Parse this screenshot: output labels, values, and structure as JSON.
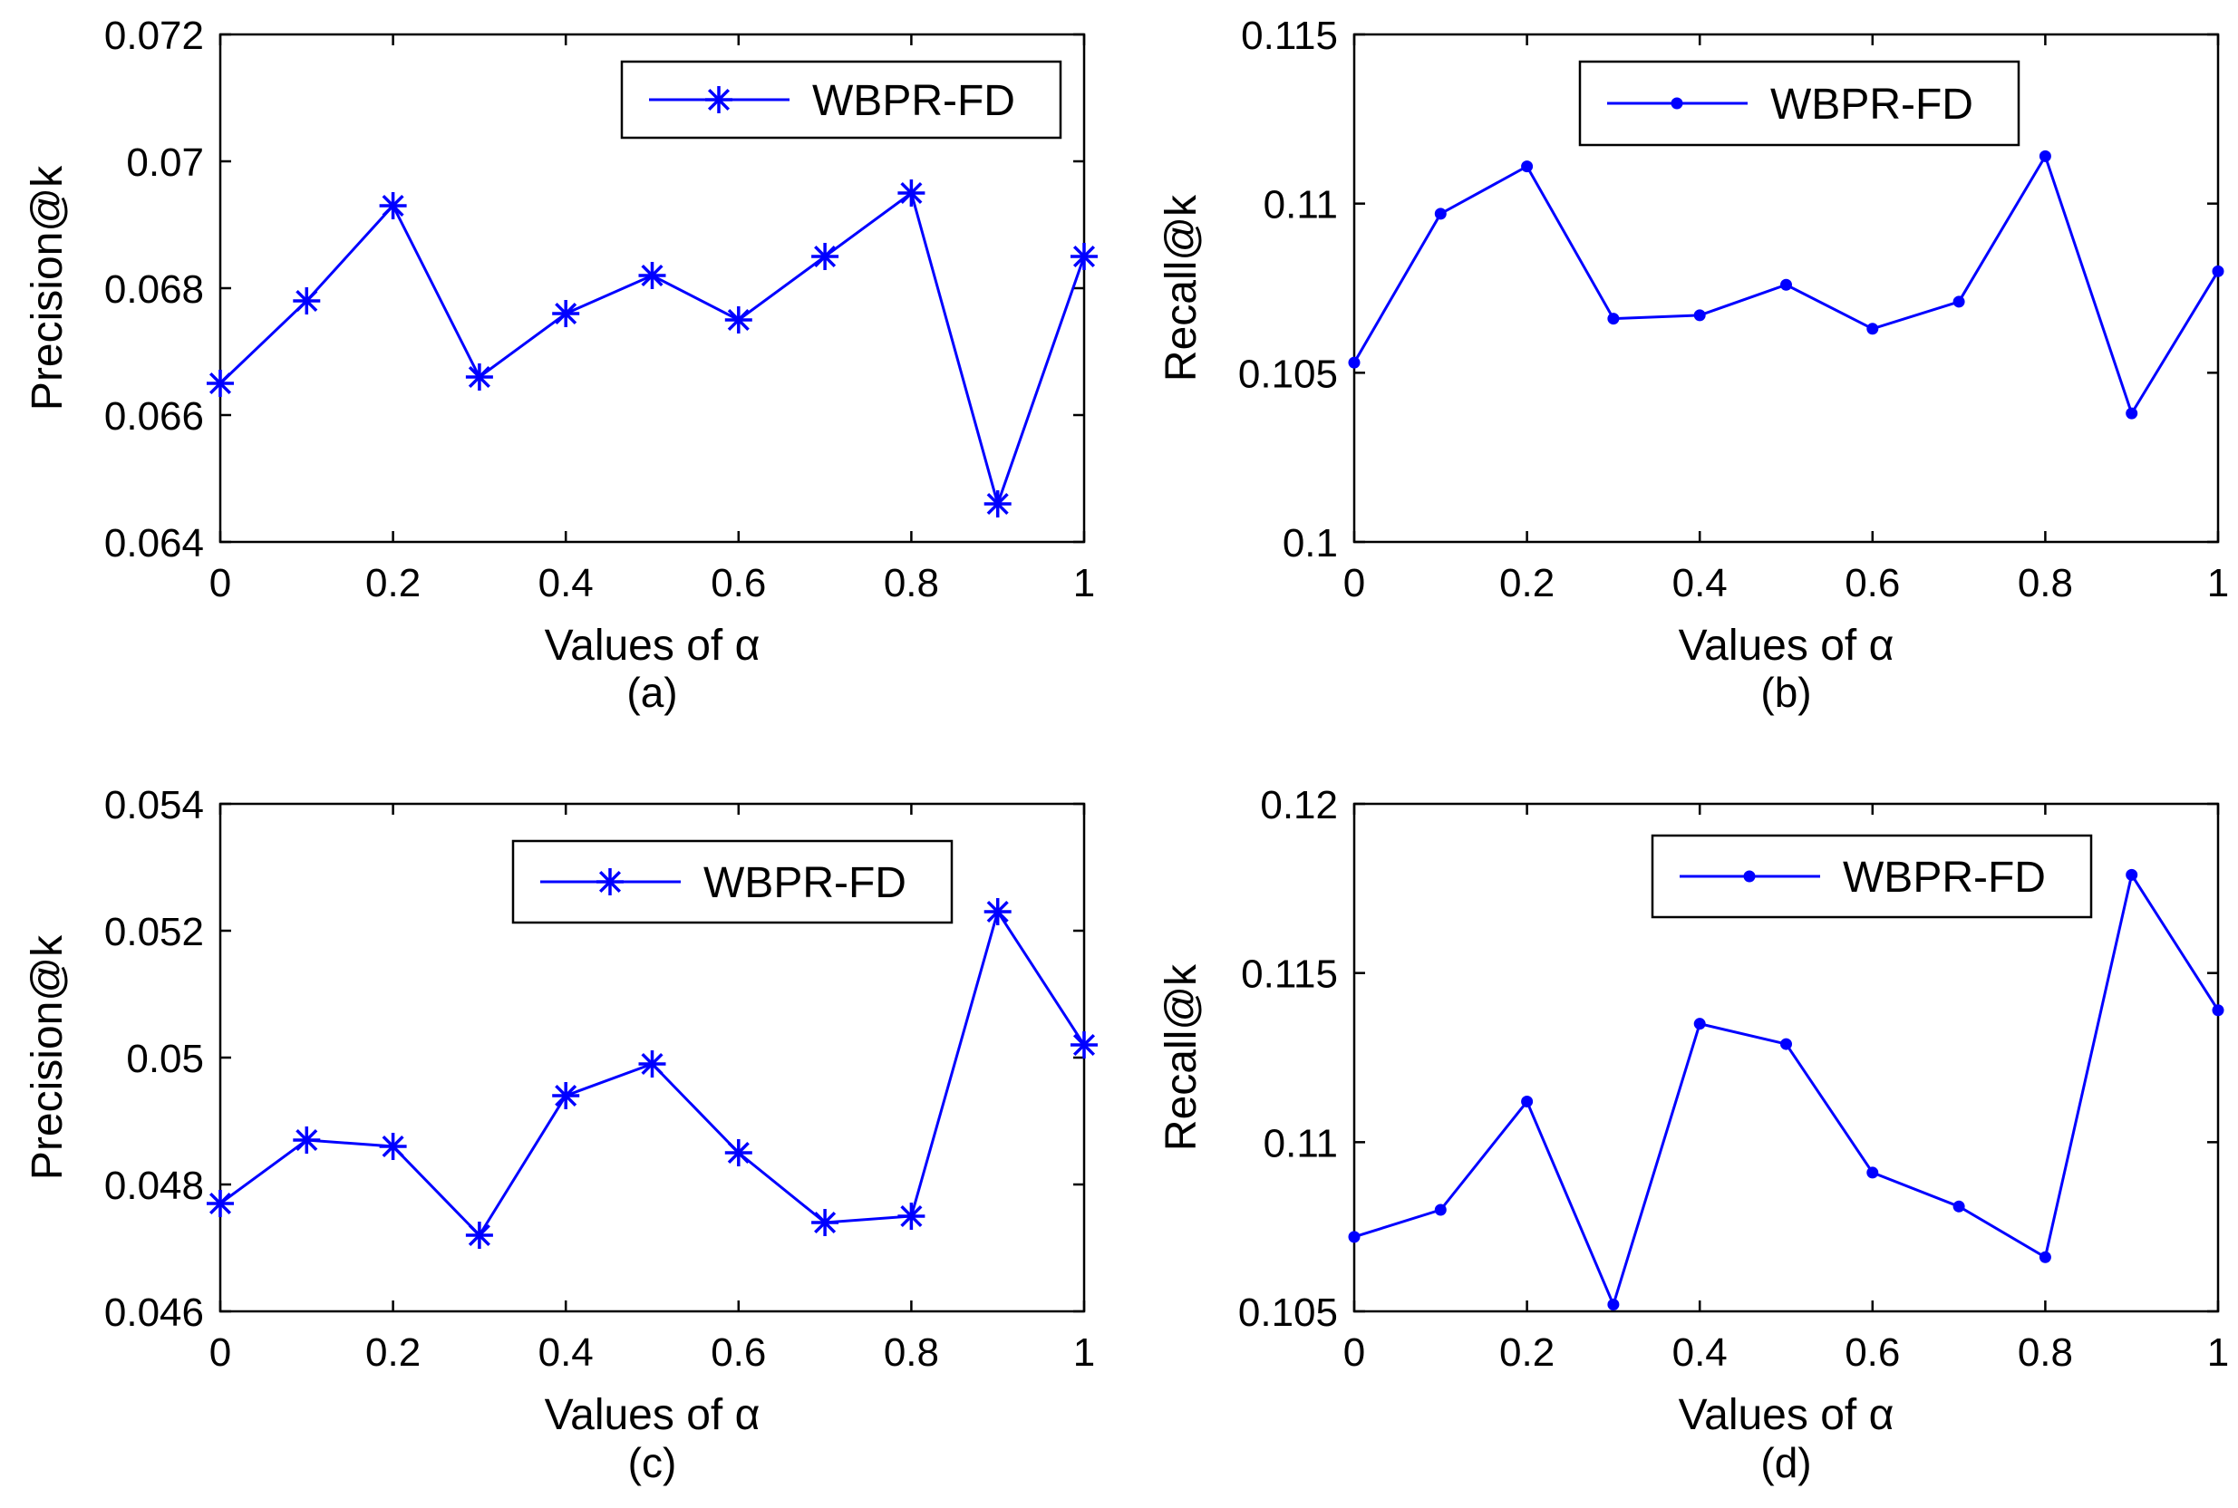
{
  "chart_data": [
    {
      "type": "line",
      "panel": "a",
      "caption": "(a)",
      "x": [
        0,
        0.1,
        0.2,
        0.3,
        0.4,
        0.5,
        0.6,
        0.7,
        0.8,
        0.9,
        1
      ],
      "series": [
        {
          "name": "WBPR-FD",
          "marker": "asterisk",
          "values": [
            0.0665,
            0.0678,
            0.0693,
            0.0666,
            0.0676,
            0.0682,
            0.0675,
            0.0685,
            0.0695,
            0.0646,
            0.0685
          ]
        }
      ],
      "xlabel": "Values of α",
      "ylabel": "Precision@k",
      "xlim": [
        0,
        1
      ],
      "ylim": [
        0.064,
        0.072
      ],
      "xticks": [
        "0",
        "0.2",
        "0.4",
        "0.6",
        "0.8",
        "1"
      ],
      "yticks": [
        "0.064",
        "0.066",
        "0.068",
        "0.07",
        "0.072"
      ],
      "legend_position": "top-right",
      "grid": false
    },
    {
      "type": "line",
      "panel": "b",
      "caption": "(b)",
      "x": [
        0,
        0.1,
        0.2,
        0.3,
        0.4,
        0.5,
        0.6,
        0.7,
        0.8,
        0.9,
        1
      ],
      "series": [
        {
          "name": "WBPR-FD",
          "marker": "dot",
          "values": [
            0.1053,
            0.1097,
            0.1111,
            0.1066,
            0.1067,
            0.1076,
            0.1063,
            0.1071,
            0.1114,
            0.1038,
            0.108
          ]
        }
      ],
      "xlabel": "Values of α",
      "ylabel": "Recall@k",
      "xlim": [
        0,
        1
      ],
      "ylim": [
        0.1,
        0.115
      ],
      "xticks": [
        "0",
        "0.2",
        "0.4",
        "0.6",
        "0.8",
        "1"
      ],
      "yticks": [
        "0.1",
        "0.105",
        "0.11",
        "0.115"
      ],
      "legend_position": "top-right",
      "grid": false
    },
    {
      "type": "line",
      "panel": "c",
      "caption": "(c)",
      "x": [
        0,
        0.1,
        0.2,
        0.3,
        0.4,
        0.5,
        0.6,
        0.7,
        0.8,
        0.9,
        1
      ],
      "series": [
        {
          "name": "WBPR-FD",
          "marker": "asterisk",
          "values": [
            0.0477,
            0.0487,
            0.0486,
            0.0472,
            0.0494,
            0.0499,
            0.0485,
            0.0474,
            0.0475,
            0.0523,
            0.0502
          ]
        }
      ],
      "xlabel": "Values of α",
      "ylabel": "Precision@k",
      "xlim": [
        0,
        1
      ],
      "ylim": [
        0.046,
        0.054
      ],
      "xticks": [
        "0",
        "0.2",
        "0.4",
        "0.6",
        "0.8",
        "1"
      ],
      "yticks": [
        "0.046",
        "0.048",
        "0.05",
        "0.052",
        "0.054"
      ],
      "legend_position": "top-right",
      "grid": false
    },
    {
      "type": "line",
      "panel": "d",
      "caption": "(d)",
      "x": [
        0,
        0.1,
        0.2,
        0.3,
        0.4,
        0.5,
        0.6,
        0.7,
        0.8,
        0.9,
        1
      ],
      "series": [
        {
          "name": "WBPR-FD",
          "marker": "dot",
          "values": [
            0.1072,
            0.108,
            0.1112,
            0.1052,
            0.1135,
            0.1129,
            0.1091,
            0.1081,
            0.1066,
            0.1179,
            0.1139
          ]
        }
      ],
      "xlabel": "Values of α",
      "ylabel": "Recall@k",
      "xlim": [
        0,
        1
      ],
      "ylim": [
        0.105,
        0.12
      ],
      "xticks": [
        "0",
        "0.2",
        "0.4",
        "0.6",
        "0.8",
        "1"
      ],
      "yticks": [
        "0.105",
        "0.11",
        "0.115",
        "0.12"
      ],
      "legend_position": "top-right",
      "grid": false
    }
  ],
  "colors": {
    "series": "#0000ff",
    "axes": "#000000",
    "background": "#ffffff"
  }
}
